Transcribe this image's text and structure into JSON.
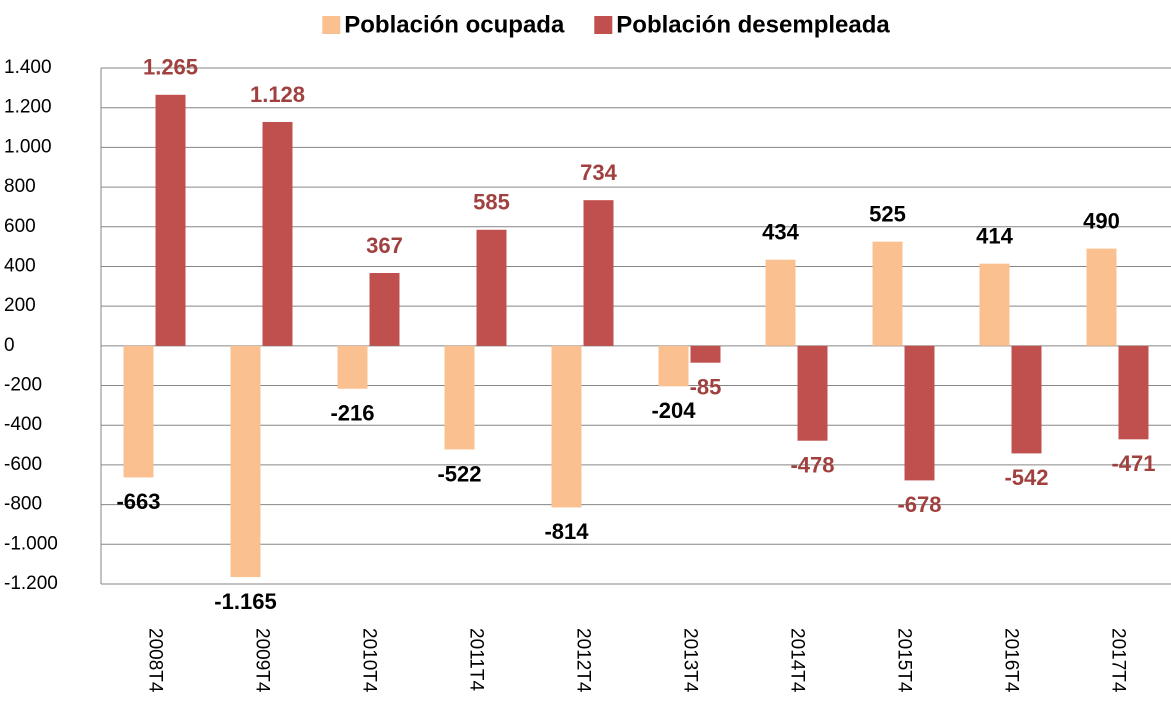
{
  "chart_data": {
    "type": "bar",
    "categories": [
      "2008T4",
      "2009T4",
      "2010T4",
      "2011T4",
      "2012T4",
      "2013T4",
      "2014T4",
      "2015T4",
      "2016T4",
      "2017T4"
    ],
    "series": [
      {
        "name": "Población ocupada",
        "color": "#fac090",
        "label_color": "#000000",
        "values": [
          -663,
          -1165,
          -216,
          -522,
          -814,
          -204,
          434,
          525,
          414,
          490
        ],
        "value_labels": [
          "-663",
          "-1.165",
          "-216",
          "-522",
          "-814",
          "-204",
          "434",
          "525",
          "414",
          "490"
        ]
      },
      {
        "name": "Población desempleada",
        "color": "#c0504d",
        "label_color": "#a0413f",
        "values": [
          1265,
          1128,
          367,
          585,
          734,
          -85,
          -478,
          -678,
          -542,
          -471
        ],
        "value_labels": [
          "1.265",
          "1.128",
          "367",
          "585",
          "734",
          "-85",
          "-478",
          "-678",
          "-542",
          "-471"
        ]
      }
    ],
    "ylim": [
      -1200,
      1400
    ],
    "yticks": [
      {
        "value": -1200,
        "label": "-1.200"
      },
      {
        "value": -1000,
        "label": "-1.000"
      },
      -800,
      -600,
      -400,
      -200,
      0,
      200,
      400,
      600,
      800,
      {
        "value": 1000,
        "label": "1.000"
      },
      {
        "value": 1200,
        "label": "1.200"
      },
      {
        "value": 1400,
        "label": "1.400"
      }
    ],
    "grid": true,
    "legend": "top"
  }
}
